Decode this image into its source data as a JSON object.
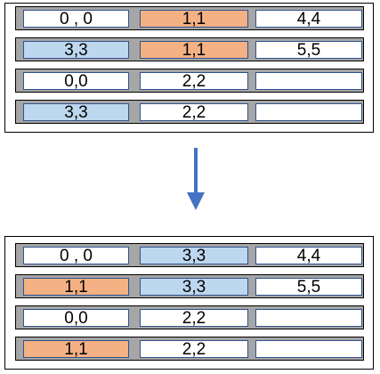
{
  "colors": {
    "white": "#ffffff",
    "blue": "#bdd7ee",
    "orange": "#f4b183",
    "row_bg": "#a6a6a6",
    "cell_border": "#2f528f",
    "arrow": "#4472c4"
  },
  "before": {
    "rows": [
      [
        {
          "text": "0 , 0",
          "fill": "white"
        },
        {
          "text": "1,1",
          "fill": "orange"
        },
        {
          "text": "4,4",
          "fill": "white"
        }
      ],
      [
        {
          "text": "3,3",
          "fill": "blue"
        },
        {
          "text": "1,1",
          "fill": "orange"
        },
        {
          "text": "5,5",
          "fill": "white"
        }
      ],
      [
        {
          "text": "0,0",
          "fill": "white"
        },
        {
          "text": "2,2",
          "fill": "white"
        },
        {
          "text": "",
          "fill": "white"
        }
      ],
      [
        {
          "text": "3,3",
          "fill": "blue"
        },
        {
          "text": "2,2",
          "fill": "white"
        },
        {
          "text": "",
          "fill": "white"
        }
      ]
    ]
  },
  "after": {
    "rows": [
      [
        {
          "text": "0 , 0",
          "fill": "white"
        },
        {
          "text": "3,3",
          "fill": "blue"
        },
        {
          "text": "4,4",
          "fill": "white"
        }
      ],
      [
        {
          "text": "1,1",
          "fill": "orange"
        },
        {
          "text": "3,3",
          "fill": "blue"
        },
        {
          "text": "5,5",
          "fill": "white"
        }
      ],
      [
        {
          "text": "0,0",
          "fill": "white"
        },
        {
          "text": "2,2",
          "fill": "white"
        },
        {
          "text": "",
          "fill": "white"
        }
      ],
      [
        {
          "text": "1,1",
          "fill": "orange"
        },
        {
          "text": "2,2",
          "fill": "white"
        },
        {
          "text": "",
          "fill": "white"
        }
      ]
    ]
  }
}
